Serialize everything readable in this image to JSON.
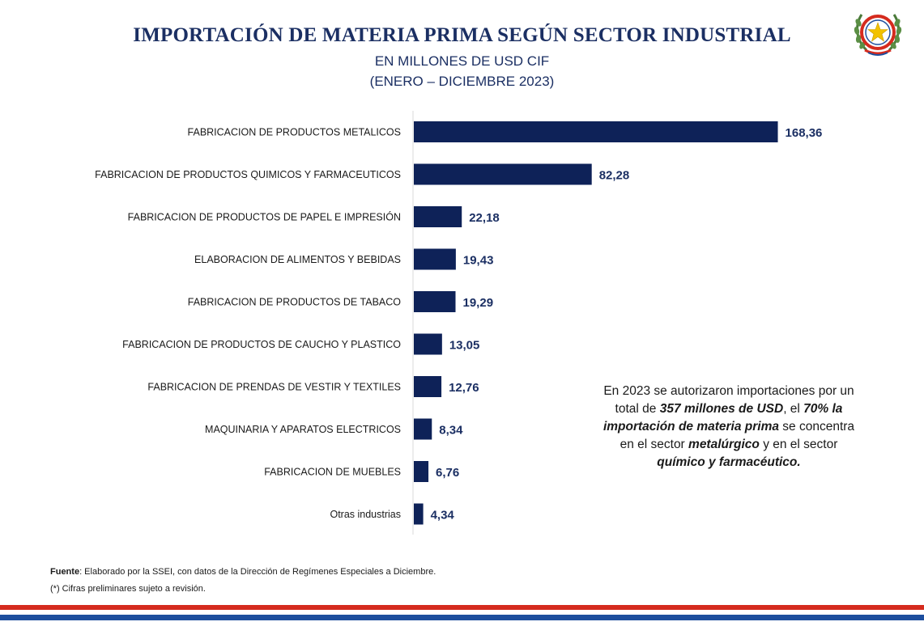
{
  "header": {
    "title": "IMPORTACIÓN DE MATERIA PRIMA SEGÚN SECTOR INDUSTRIAL",
    "subtitle_line1": "EN MILLONES DE USD CIF",
    "subtitle_line2": "(ENERO – DICIEMBRE 2023)",
    "logo_icon": "national-seal-icon"
  },
  "chart_data": {
    "type": "bar",
    "orientation": "horizontal",
    "title": "IMPORTACIÓN DE MATERIA PRIMA SEGÚN SECTOR INDUSTRIAL",
    "subtitle": "EN MILLONES DE USD CIF (ENERO – DICIEMBRE 2023)",
    "categories": [
      "FABRICACION DE PRODUCTOS METALICOS",
      "FABRICACION DE PRODUCTOS QUIMICOS Y FARMACEUTICOS",
      "FABRICACION DE PRODUCTOS DE PAPEL E IMPRESIÓN",
      "ELABORACION DE ALIMENTOS Y BEBIDAS",
      "FABRICACION DE PRODUCTOS DE TABACO",
      "FABRICACION DE PRODUCTOS DE CAUCHO Y PLASTICO",
      "FABRICACION DE PRENDAS DE VESTIR Y TEXTILES",
      "MAQUINARIA Y APARATOS ELECTRICOS",
      "FABRICACION DE MUEBLES",
      "Otras industrias"
    ],
    "values": [
      168.36,
      82.28,
      22.18,
      19.43,
      19.29,
      13.05,
      12.76,
      8.34,
      6.76,
      4.34
    ],
    "value_labels": [
      "168,36",
      "82,28",
      "22,18",
      "19,43",
      "19,29",
      "13,05",
      "12,76",
      "8,34",
      "6,76",
      "4,34"
    ],
    "xlim": [
      0,
      180
    ],
    "grid": false,
    "legend": "none",
    "bar_color": "#0e2258"
  },
  "note": {
    "part1": "En 2023 se autorizaron importaciones por un total de ",
    "highlight1": "357 millones de USD",
    "part2": ",  el ",
    "highlight2": "70% la importación de materia prima",
    "part3": " se concentra en el sector ",
    "highlight3": "metalúrgico",
    "part4": " y en el sector ",
    "highlight4": "químico y farmacéutico."
  },
  "footer": {
    "source_label": "Fuente",
    "source_text": ": Elaborado por la SSEI, con datos de la Dirección de Regímenes Especiales a Diciembre.",
    "disclaimer": "(*) Cifras preliminares sujeto a revisión."
  },
  "colors": {
    "title": "#1b2f63",
    "bar": "#0e2258",
    "stripe_red": "#d52b1e",
    "stripe_blue": "#1d4e9e"
  }
}
